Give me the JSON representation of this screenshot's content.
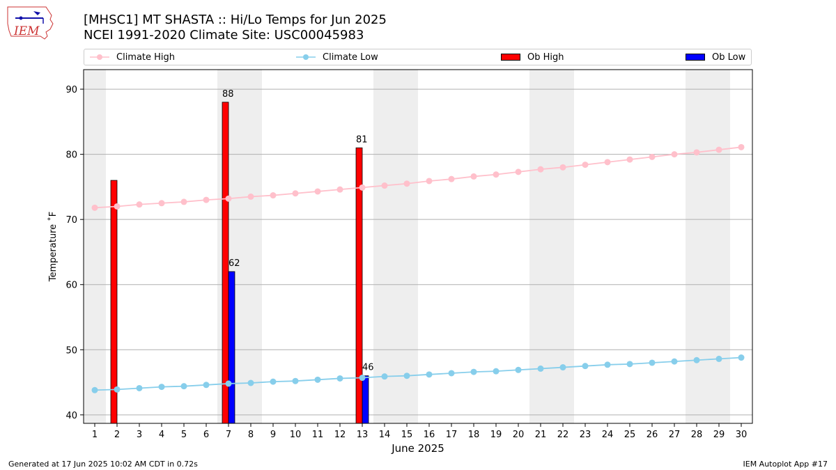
{
  "header": {
    "title_line1": "[MHSC1] MT SHASTA :: Hi/Lo Temps for Jun 2025",
    "title_line2": "NCEI 1991-2020 Climate Site: USC00045983",
    "logo_text": "IEM"
  },
  "footer": {
    "generated": "Generated at 17 Jun 2025 10:02 AM CDT in 0.72s",
    "app": "IEM Autoplot App #17"
  },
  "legend": {
    "climate_high": "Climate High",
    "climate_low": "Climate Low",
    "ob_high": "Ob High",
    "ob_low": "Ob Low"
  },
  "colors": {
    "climate_high": "#ffc0cb",
    "climate_low": "#87ceeb",
    "ob_high": "#ff0000",
    "ob_low": "#0000ff",
    "weekend_shade": "#eeeeee",
    "grid": "#b0b0b0"
  },
  "chart_data": {
    "type": "bar",
    "xlabel": "June 2025",
    "ylabel": "Temperature ˚F",
    "xlim": [
      0.5,
      30.5
    ],
    "ylim": [
      38.7,
      93.0
    ],
    "yticks": [
      40,
      50,
      60,
      70,
      80,
      90
    ],
    "days": [
      1,
      2,
      3,
      4,
      5,
      6,
      7,
      8,
      9,
      10,
      11,
      12,
      13,
      14,
      15,
      16,
      17,
      18,
      19,
      20,
      21,
      22,
      23,
      24,
      25,
      26,
      27,
      28,
      29,
      30
    ],
    "shaded_days": [
      1,
      7,
      8,
      14,
      15,
      21,
      22,
      28,
      29
    ],
    "series": [
      {
        "name": "Climate High",
        "kind": "line",
        "values": [
          71.8,
          72.0,
          72.3,
          72.5,
          72.7,
          73.0,
          73.2,
          73.5,
          73.7,
          74.0,
          74.3,
          74.6,
          74.9,
          75.2,
          75.5,
          75.9,
          76.2,
          76.6,
          76.9,
          77.3,
          77.7,
          78.0,
          78.4,
          78.8,
          79.2,
          79.6,
          80.0,
          80.3,
          80.7,
          81.1
        ]
      },
      {
        "name": "Climate Low",
        "kind": "line",
        "values": [
          43.8,
          43.9,
          44.1,
          44.3,
          44.4,
          44.6,
          44.8,
          44.9,
          45.1,
          45.2,
          45.4,
          45.6,
          45.7,
          45.9,
          46.0,
          46.2,
          46.4,
          46.6,
          46.7,
          46.9,
          47.1,
          47.3,
          47.5,
          47.7,
          47.8,
          48.0,
          48.2,
          48.4,
          48.6,
          48.8
        ]
      },
      {
        "name": "Ob High",
        "kind": "bar",
        "points": [
          {
            "day": 2,
            "value": 76,
            "label": ""
          },
          {
            "day": 7,
            "value": 88,
            "label": "88"
          },
          {
            "day": 13,
            "value": 81,
            "label": "81"
          }
        ]
      },
      {
        "name": "Ob Low",
        "kind": "bar",
        "points": [
          {
            "day": 7,
            "value": 62,
            "label": "62"
          },
          {
            "day": 13,
            "value": 46,
            "label": "46"
          }
        ]
      }
    ]
  }
}
